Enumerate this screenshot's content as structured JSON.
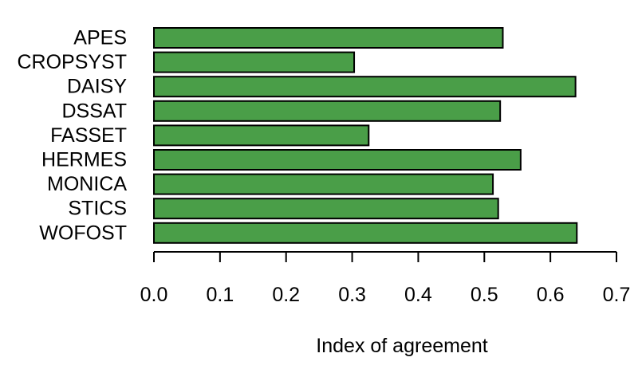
{
  "chart_data": {
    "type": "bar",
    "orientation": "horizontal",
    "categories": [
      "APES",
      "CROPSYST",
      "DAISY",
      "DSSAT",
      "FASSET",
      "HERMES",
      "MONICA",
      "STICS",
      "WOFOST"
    ],
    "values": [
      0.528,
      0.303,
      0.638,
      0.524,
      0.325,
      0.555,
      0.513,
      0.521,
      0.64
    ],
    "xlabel": "Index of agreement",
    "ylabel": "",
    "title": "",
    "xlim": [
      0,
      0.7
    ],
    "xticks": [
      "0.0",
      "0.1",
      "0.2",
      "0.3",
      "0.4",
      "0.5",
      "0.6",
      "0.7"
    ],
    "bar_color": "#4a9e48",
    "bar_edge_color": "#000000",
    "grid": false,
    "legend": "none"
  }
}
